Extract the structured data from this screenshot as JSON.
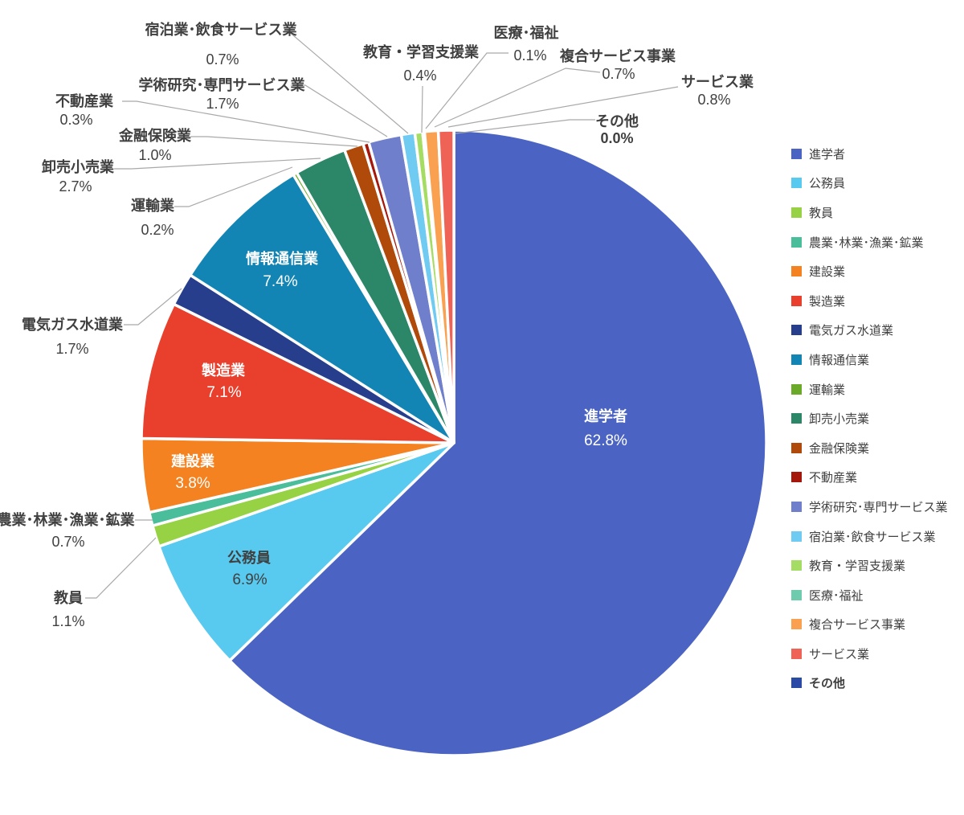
{
  "chart_data": {
    "type": "pie",
    "unit": "%",
    "start_angle_deg": 0,
    "direction": "clockwise",
    "legend_position": "right",
    "label_line_color": "#A9A9A9",
    "label_text_color": "#404040",
    "slices": [
      {
        "id": "higher-education",
        "label": "進学者",
        "value": 62.8,
        "color": "#4B64C4",
        "label_placement": "inside",
        "label_color": "#FFFFFF"
      },
      {
        "id": "civil-servant",
        "label": "公務員",
        "value": 6.9,
        "color": "#58C9EF",
        "label_placement": "inside",
        "label_color": "#404040"
      },
      {
        "id": "teacher",
        "label": "教員",
        "value": 1.1,
        "color": "#97D244",
        "label_placement": "outside"
      },
      {
        "id": "agri-forestry-fishery-mining",
        "label": "農業･林業･漁業･鉱業",
        "value": 0.7,
        "color": "#4ABD9A",
        "label_placement": "outside"
      },
      {
        "id": "construction",
        "label": "建設業",
        "value": 3.8,
        "color": "#F58220",
        "label_placement": "inside",
        "label_color": "#FFFFFF"
      },
      {
        "id": "manufacturing",
        "label": "製造業",
        "value": 7.1,
        "color": "#E8402C",
        "label_placement": "inside",
        "label_color": "#FFFFFF"
      },
      {
        "id": "utilities",
        "label": "電気ガス水道業",
        "value": 1.7,
        "color": "#263E8C",
        "label_placement": "outside"
      },
      {
        "id": "information-communication",
        "label": "情報通信業",
        "value": 7.4,
        "color": "#1285B4",
        "label_placement": "inside",
        "label_color": "#FFFFFF"
      },
      {
        "id": "transport",
        "label": "運輸業",
        "value": 0.2,
        "color": "#6BAA28",
        "label_placement": "outside"
      },
      {
        "id": "wholesale-retail",
        "label": "卸売小売業",
        "value": 2.7,
        "color": "#2B8768",
        "label_placement": "outside"
      },
      {
        "id": "finance-insurance",
        "label": "金融保険業",
        "value": 1.0,
        "color": "#B04A0B",
        "label_placement": "outside"
      },
      {
        "id": "real-estate",
        "label": "不動産業",
        "value": 0.3,
        "color": "#A6170B",
        "label_placement": "outside"
      },
      {
        "id": "academic-professional-services",
        "label": "学術研究･専門サービス業",
        "value": 1.7,
        "color": "#6F7FCC",
        "label_placement": "outside"
      },
      {
        "id": "accommodation-food-services",
        "label": "宿泊業･飲食サービス業",
        "value": 0.7,
        "color": "#6FCBF2",
        "label_placement": "outside"
      },
      {
        "id": "education-support",
        "label": "教育・学習支援業",
        "value": 0.4,
        "color": "#A4DC64",
        "label_placement": "outside"
      },
      {
        "id": "medical-welfare",
        "label": "医療･福祉",
        "value": 0.1,
        "color": "#6FCBAE",
        "label_placement": "outside"
      },
      {
        "id": "compound-services",
        "label": "複合サービス事業",
        "value": 0.7,
        "color": "#F9A051",
        "label_placement": "outside"
      },
      {
        "id": "services",
        "label": "サービス業",
        "value": 0.8,
        "color": "#EE6355",
        "label_placement": "outside"
      },
      {
        "id": "others",
        "label": "その他",
        "value": 0.0,
        "color": "#2A4AA5",
        "label_placement": "outside",
        "emphasis": true
      }
    ]
  }
}
